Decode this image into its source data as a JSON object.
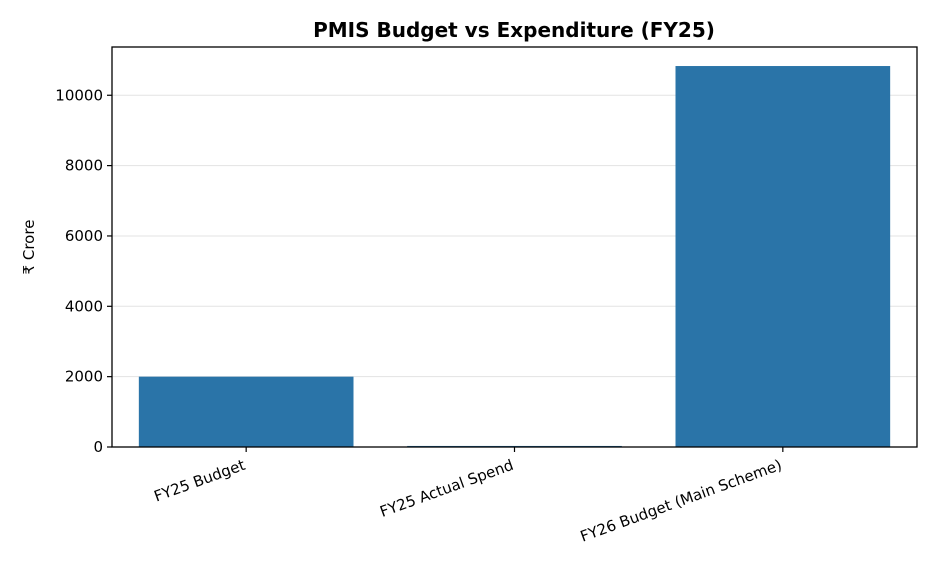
{
  "chart_data": {
    "type": "bar",
    "title": "PMIS Budget vs Expenditure (FY25)",
    "xlabel": "",
    "ylabel": "₹ Crore",
    "categories": [
      "FY25 Budget",
      "FY25 Actual Spend",
      "FY26 Budget (Main Scheme)"
    ],
    "values": [
      2000,
      30,
      10831
    ],
    "ylim": [
      0,
      11372
    ],
    "yticks": [
      0,
      2000,
      4000,
      6000,
      8000,
      10000
    ],
    "grid": "y",
    "legend": "none",
    "bar_color": "#2a74a8"
  }
}
